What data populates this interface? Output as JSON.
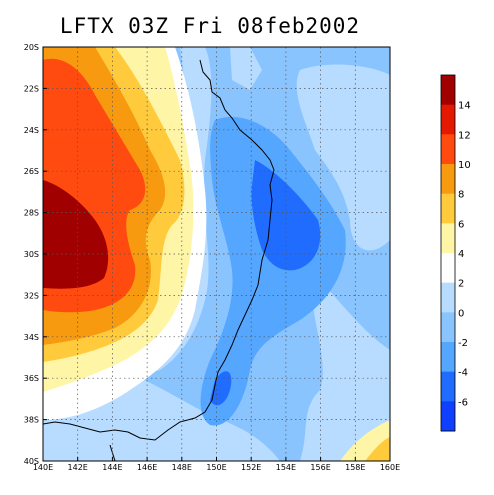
{
  "title": "LFTX 03Z Fri 08feb2002",
  "map": {
    "lon_labels": [
      "140E",
      "142E",
      "144E",
      "146E",
      "148E",
      "150E",
      "152E",
      "154E",
      "156E",
      "158E",
      "160E"
    ],
    "lat_labels": [
      "20S",
      "22S",
      "24S",
      "26S",
      "28S",
      "30S",
      "32S",
      "34S",
      "36S",
      "38S",
      "40S"
    ],
    "lon_range": [
      140,
      160
    ],
    "lat_range": [
      -20,
      -40
    ],
    "grid": true
  },
  "colorbar": {
    "labels": [
      "14",
      "12",
      "10",
      "8",
      "6",
      "4",
      "2",
      "0",
      "-2",
      "-4",
      "-6"
    ],
    "colors": [
      "#a00000",
      "#e41a00",
      "#ff4a10",
      "#f79a10",
      "#ffcb3c",
      "#fff5a6",
      "#ffffff",
      "#b7dcff",
      "#8ac4ff",
      "#55a6ff",
      "#1f6cff",
      "#1040ff"
    ]
  }
}
